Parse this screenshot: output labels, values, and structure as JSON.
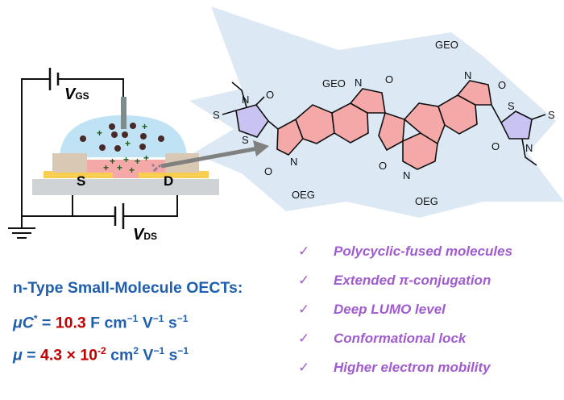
{
  "device": {
    "vgs_label": "V",
    "vgs_sub": "GS",
    "vds_label": "V",
    "vds_sub": "DS",
    "source": "S",
    "drain": "D"
  },
  "molecule": {
    "atoms": {
      "N": "N",
      "O": "O",
      "S": "S",
      "GEO": "GEO",
      "OEG": "OEG"
    }
  },
  "equations": {
    "title": "n-Type Small-Molecule OECTs:",
    "eq1": {
      "symbol": "μC",
      "star": "*",
      "eq": " = ",
      "value": "10.3",
      "unit": " F cm",
      "e1": "−1",
      "u2": " V",
      "e2": "−1",
      "u3": " s",
      "e3": "−1"
    },
    "eq2": {
      "symbol": "μ",
      "eq": " = ",
      "value": "4.3 × 10",
      "exp": "-2",
      "unit": " cm",
      "e1": "2",
      "u2": " V",
      "e2": "−1",
      "u3": " s",
      "e3": "−1"
    }
  },
  "features": {
    "check": "✓",
    "items": [
      "Polycyclic-fused molecules",
      "Extended π-conjugation",
      "Deep LUMO level",
      "Conformational lock",
      "Higher electron mobility"
    ]
  },
  "colors": {
    "blue": "#1f5fae",
    "red": "#c00000",
    "purple": "#a05ccf",
    "pink": "#f4a9a8",
    "electrolyte": "#bfe3f4"
  }
}
